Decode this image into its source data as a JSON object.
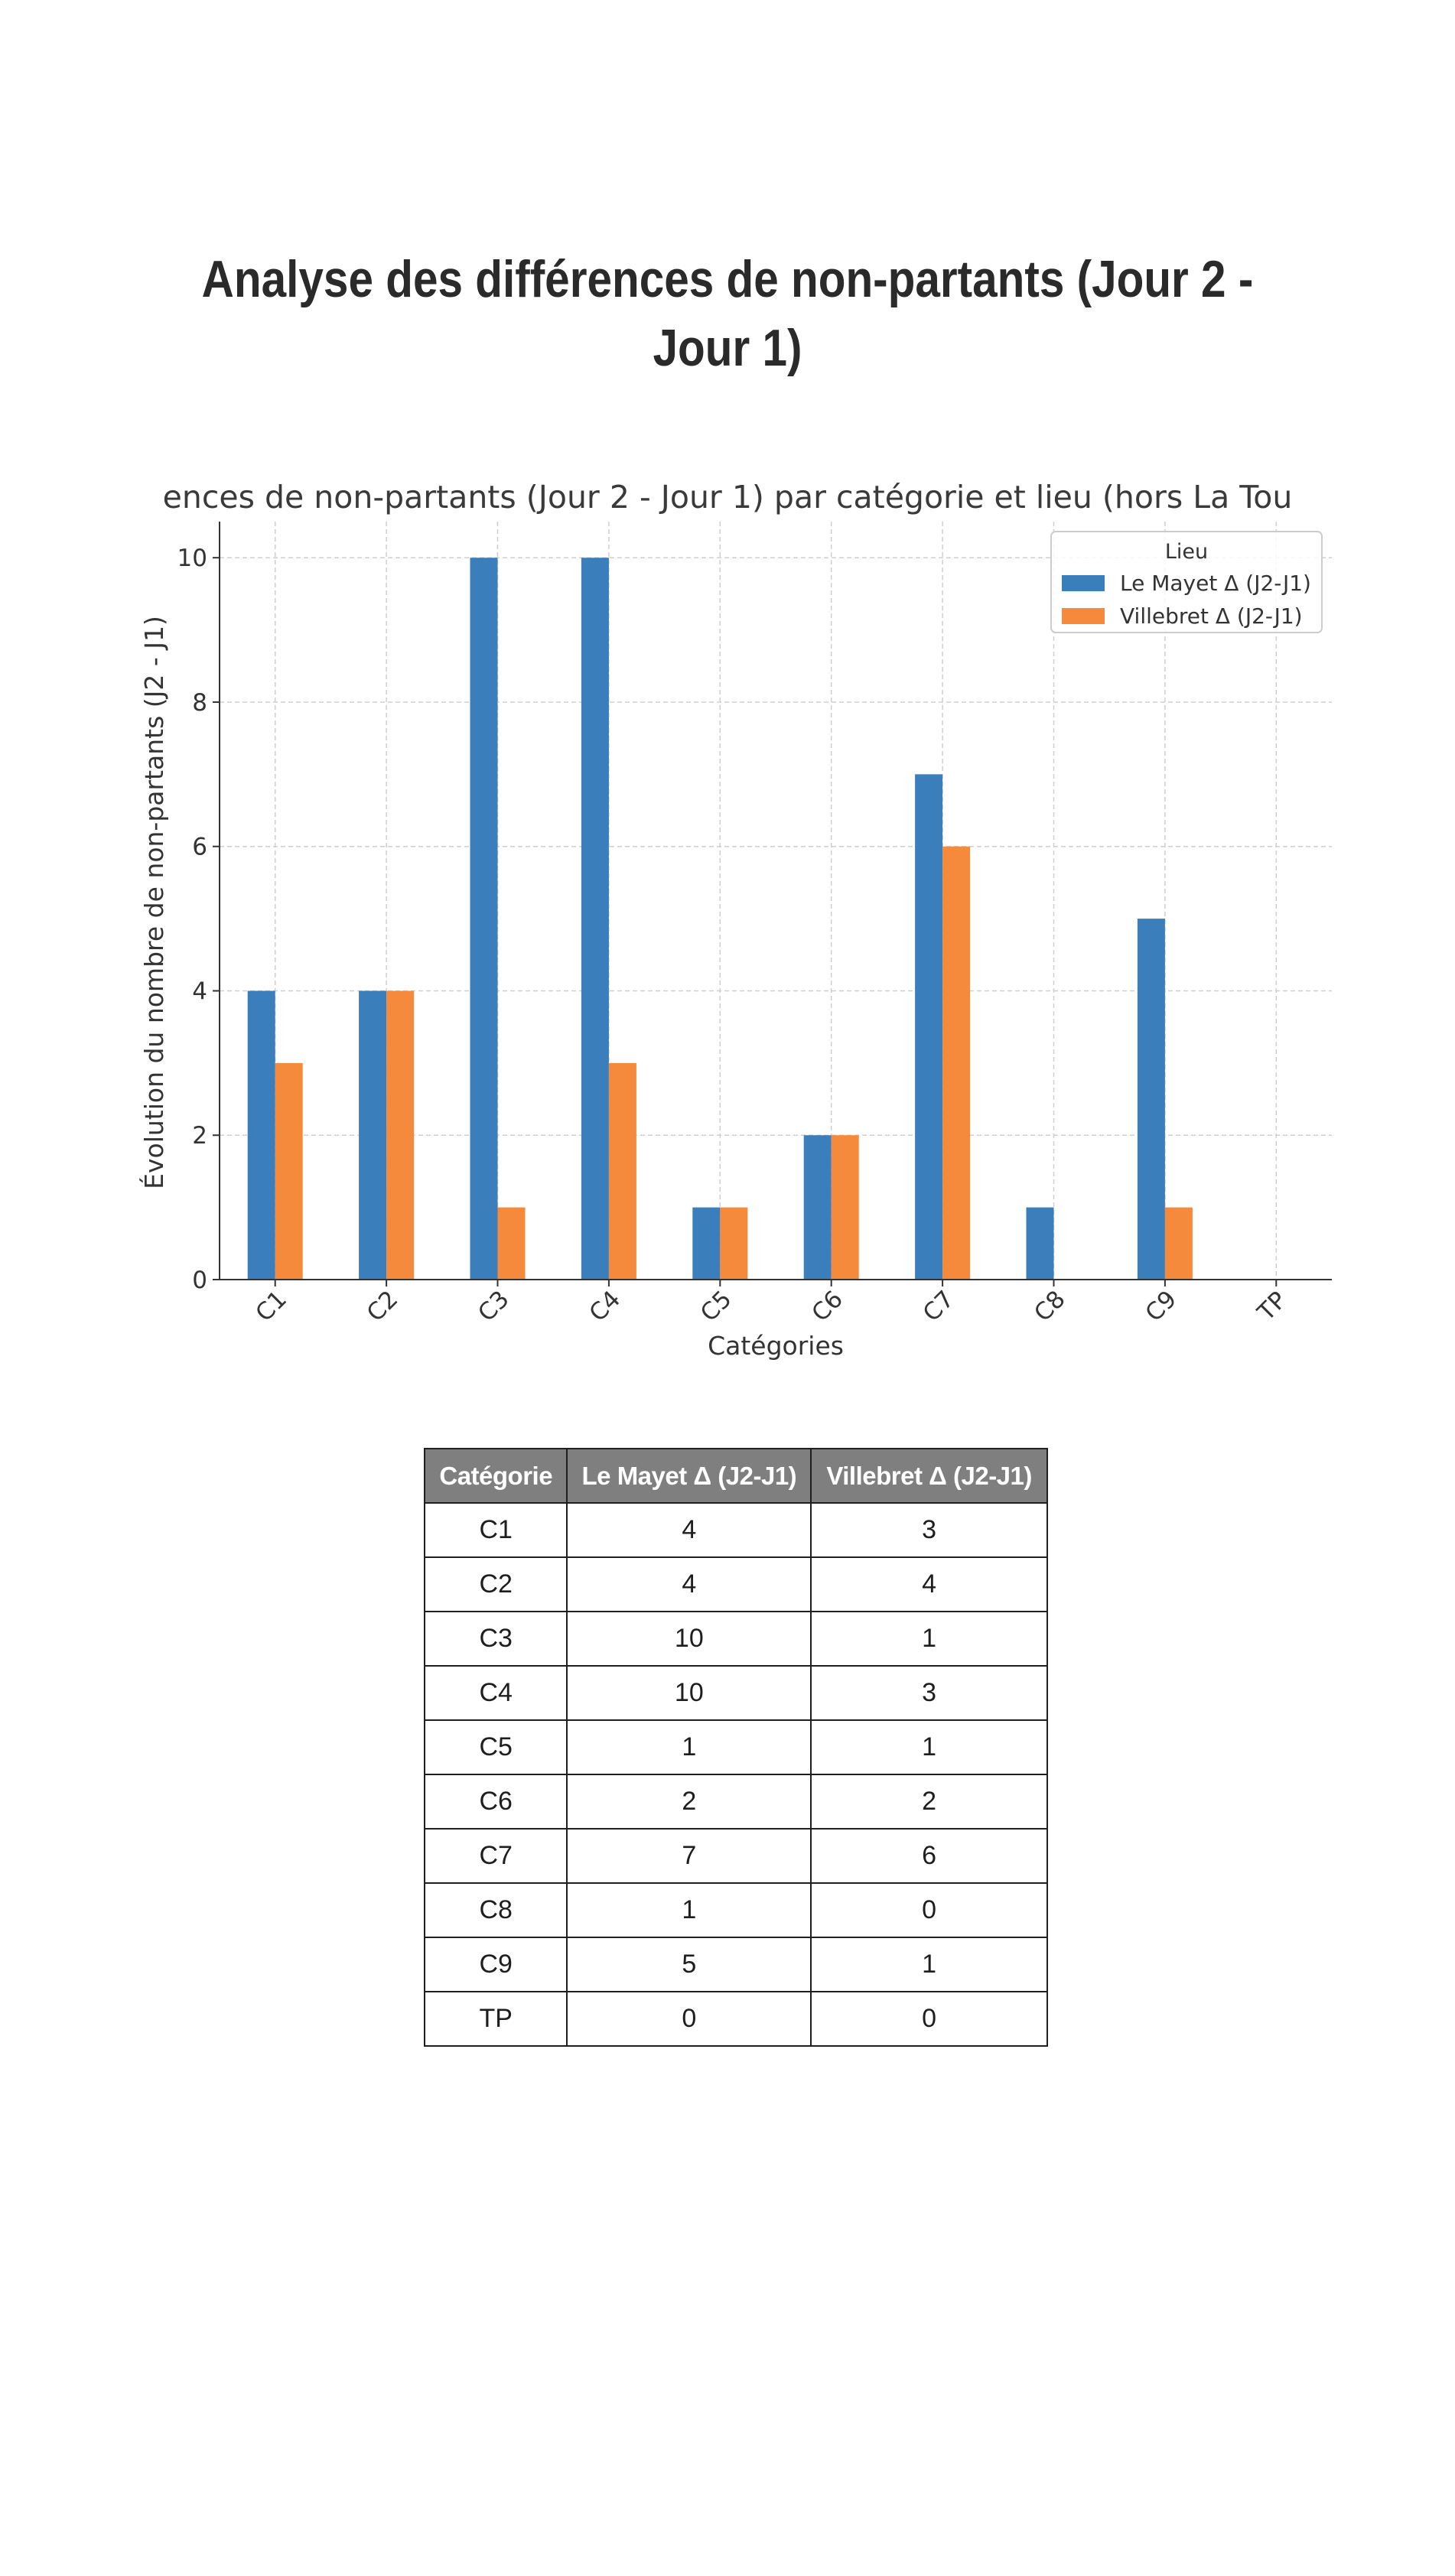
{
  "document": {
    "title_line1": "Analyse des différences de non-partants (Jour 2 -",
    "title_line2": "Jour 1)"
  },
  "chart_data": {
    "type": "bar",
    "title": "ences de non-partants (Jour 2 - Jour 1) par catégorie et lieu (hors La Tou",
    "xlabel": "Catégories",
    "ylabel": "Évolution du nombre de non-partants (J2 - J1)",
    "categories": [
      "C1",
      "C2",
      "C3",
      "C4",
      "C5",
      "C6",
      "C7",
      "C8",
      "C9",
      "TP"
    ],
    "series": [
      {
        "name": "Le Mayet Δ (J2-J1)",
        "values": [
          4,
          4,
          10,
          10,
          1,
          2,
          7,
          1,
          5,
          0
        ],
        "color": "#3a7ebc"
      },
      {
        "name": "Villebret Δ (J2-J1)",
        "values": [
          3,
          4,
          1,
          3,
          1,
          2,
          6,
          0,
          1,
          0
        ],
        "color": "#f58a3d"
      }
    ],
    "ylim": [
      0,
      10.5
    ],
    "yticks": [
      0,
      2,
      4,
      6,
      8,
      10
    ],
    "grid": true,
    "legend": {
      "title": "Lieu",
      "placement": "top-right"
    }
  },
  "table": {
    "headers": [
      "Catégorie",
      "Le Mayet Δ (J2-J1)",
      "Villebret Δ (J2-J1)"
    ],
    "rows": [
      [
        "C1",
        "4",
        "3"
      ],
      [
        "C2",
        "4",
        "4"
      ],
      [
        "C3",
        "10",
        "1"
      ],
      [
        "C4",
        "10",
        "3"
      ],
      [
        "C5",
        "1",
        "1"
      ],
      [
        "C6",
        "2",
        "2"
      ],
      [
        "C7",
        "7",
        "6"
      ],
      [
        "C8",
        "1",
        "0"
      ],
      [
        "C9",
        "5",
        "1"
      ],
      [
        "TP",
        "0",
        "0"
      ]
    ]
  }
}
